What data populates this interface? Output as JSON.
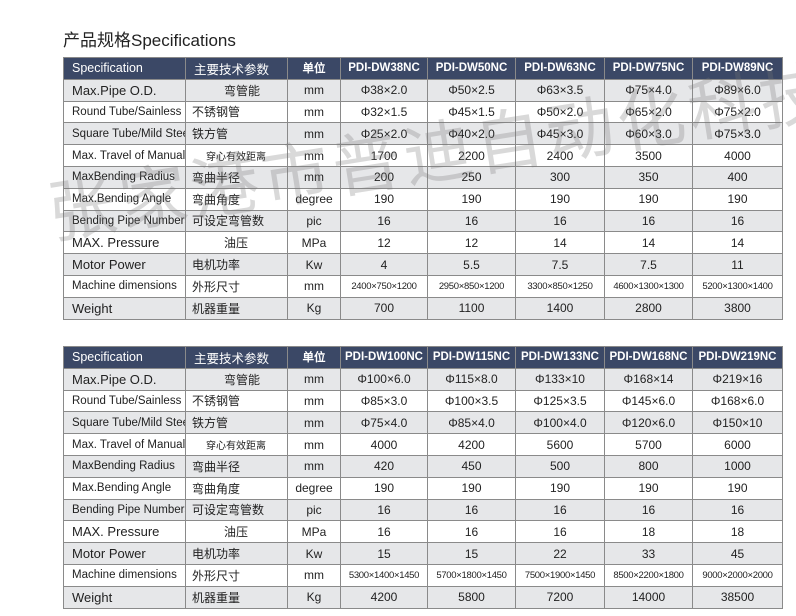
{
  "title": "产品规格Specifications",
  "watermark": "张家港市普迪自动化科技有限公司",
  "header": {
    "spec": "Specification",
    "cn": "主要技术参数",
    "unit": "单位"
  },
  "rows": [
    {
      "en": "Max.Pipe O.D.",
      "cn": "弯管能",
      "unit": "mm"
    },
    {
      "en": "Round Tube/Sainless",
      "cn": "不锈钢管",
      "unit": "mm"
    },
    {
      "en": "Square Tube/Mild Steel",
      "cn": "铁方管",
      "unit": "mm"
    },
    {
      "en": "Max. Travel of Manual",
      "cn": "穿心有效距离",
      "unit": "mm"
    },
    {
      "en": "MaxBending Radius",
      "cn": "弯曲半径",
      "unit": "mm"
    },
    {
      "en": "Max.Bending Angle",
      "cn": "弯曲角度",
      "unit": "degree"
    },
    {
      "en": "Bending Pipe Numbers",
      "cn": "可设定弯管数",
      "unit": "pic"
    },
    {
      "en": "MAX. Pressure",
      "cn": "油压",
      "unit": "MPa"
    },
    {
      "en": "Motor Power",
      "cn": "电机功率",
      "unit": "Kw"
    },
    {
      "en": "Machine dimensions",
      "cn": "外形尺寸",
      "unit": "mm"
    },
    {
      "en": "Weight",
      "cn": "机器重量",
      "unit": "Kg"
    }
  ],
  "tables": [
    {
      "models": [
        "PDI-DW38NC",
        "PDI-DW50NC",
        "PDI-DW63NC",
        "PDI-DW75NC",
        "PDI-DW89NC"
      ],
      "values": [
        [
          "Φ38×2.0",
          "Φ50×2.5",
          "Φ63×3.5",
          "Φ75×4.0",
          "Φ89×6.0"
        ],
        [
          "Φ32×1.5",
          "Φ45×1.5",
          "Φ50×2.0",
          "Φ65×2.0",
          "Φ75×2.0"
        ],
        [
          "Φ25×2.0",
          "Φ40×2.0",
          "Φ45×3.0",
          "Φ60×3.0",
          "Φ75×3.0"
        ],
        [
          "1700",
          "2200",
          "2400",
          "3500",
          "4000"
        ],
        [
          "200",
          "250",
          "300",
          "350",
          "400"
        ],
        [
          "190",
          "190",
          "190",
          "190",
          "190"
        ],
        [
          "16",
          "16",
          "16",
          "16",
          "16"
        ],
        [
          "12",
          "12",
          "14",
          "14",
          "14"
        ],
        [
          "4",
          "5.5",
          "7.5",
          "7.5",
          "11"
        ],
        [
          "2400×750×1200",
          "2950×850×1200",
          "3300×850×1250",
          "4600×1300×1300",
          "5200×1300×1400"
        ],
        [
          "700",
          "1100",
          "1400",
          "2800",
          "3800"
        ]
      ]
    },
    {
      "models": [
        "PDI-DW100NC",
        "PDI-DW115NC",
        "PDI-DW133NC",
        "PDI-DW168NC",
        "PDI-DW219NC"
      ],
      "values": [
        [
          "Φ100×6.0",
          "Φ115×8.0",
          "Φ133×10",
          "Φ168×14",
          "Φ219×16"
        ],
        [
          "Φ85×3.0",
          "Φ100×3.5",
          "Φ125×3.5",
          "Φ145×6.0",
          "Φ168×6.0"
        ],
        [
          "Φ75×4.0",
          "Φ85×4.0",
          "Φ100×4.0",
          "Φ120×6.0",
          "Φ150×10"
        ],
        [
          "4000",
          "4200",
          "5600",
          "5700",
          "6000"
        ],
        [
          "420",
          "450",
          "500",
          "800",
          "1000"
        ],
        [
          "190",
          "190",
          "190",
          "190",
          "190"
        ],
        [
          "16",
          "16",
          "16",
          "16",
          "16"
        ],
        [
          "16",
          "16",
          "16",
          "18",
          "18"
        ],
        [
          "15",
          "15",
          "22",
          "33",
          "45"
        ],
        [
          "5300×1400×1450",
          "5700×1800×1450",
          "7500×1900×1450",
          "8500×2200×1800",
          "9000×2000×2000"
        ],
        [
          "4200",
          "5800",
          "7200",
          "14000",
          "38500"
        ]
      ]
    }
  ]
}
